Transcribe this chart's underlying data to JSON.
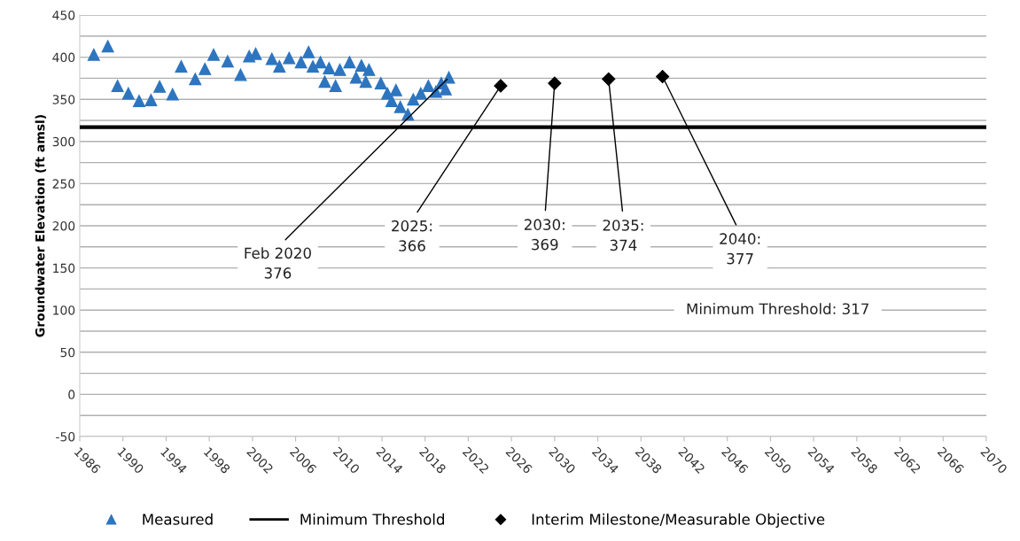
{
  "chart_data": {
    "type": "scatter",
    "ylabel": "Groundwater Elevation (ft amsl)",
    "xlim": [
      1986,
      2070
    ],
    "xticks": [
      1986,
      1990,
      1994,
      1998,
      2002,
      2006,
      2010,
      2014,
      2018,
      2022,
      2026,
      2030,
      2034,
      2038,
      2042,
      2046,
      2050,
      2054,
      2058,
      2062,
      2066,
      2070
    ],
    "ylim": [
      -50,
      450
    ],
    "yticks": [
      -50,
      {
        "value": -25,
        "label": null
      },
      0,
      {
        "value": 25,
        "label": null
      },
      50,
      {
        "value": 75,
        "label": null
      },
      100,
      {
        "value": 125,
        "label": null
      },
      150,
      {
        "value": 175,
        "label": null
      },
      200,
      {
        "value": 225,
        "label": null
      },
      250,
      {
        "value": 275,
        "label": null
      },
      300,
      {
        "value": 325,
        "label": null
      },
      350,
      {
        "value": 375,
        "label": null
      },
      400,
      {
        "value": 425,
        "label": null
      },
      450
    ],
    "grid": "y",
    "legend": "bottom",
    "series": [
      {
        "name": "Measured",
        "marker": "triangle",
        "color": "#2e75c0",
        "x": [
          1987.3,
          1988.6,
          1989.5,
          1990.5,
          1991.5,
          1992.6,
          1993.4,
          1994.6,
          1995.4,
          1996.7,
          1997.6,
          1998.4,
          1999.7,
          2000.9,
          2001.7,
          2002.3,
          2003.8,
          2004.5,
          2005.4,
          2006.5,
          2007.2,
          2007.6,
          2008.3,
          2008.7,
          2009.1,
          2009.7,
          2010.1,
          2011.0,
          2011.6,
          2012.1,
          2012.5,
          2012.8,
          2013.9,
          2014.5,
          2014.9,
          2015.3,
          2015.7,
          2016.4,
          2016.9,
          2017.6,
          2018.3,
          2019.0,
          2019.5,
          2019.9,
          2020.2
        ],
        "values": [
          403,
          413,
          366,
          357,
          348,
          349,
          365,
          356,
          389,
          374,
          386,
          403,
          395,
          379,
          401,
          404,
          398,
          389,
          399,
          394,
          406,
          389,
          394,
          371,
          387,
          366,
          385,
          394,
          376,
          390,
          371,
          385,
          369,
          357,
          348,
          361,
          341,
          332,
          350,
          357,
          366,
          359,
          369,
          362,
          376
        ]
      },
      {
        "name": "Minimum Threshold",
        "type": "line",
        "line_style": "solid",
        "color": "#000000",
        "x": [
          1986,
          2070
        ],
        "values": [
          317,
          317
        ]
      },
      {
        "name": "Interim Milestone/Measurable Objective",
        "marker": "diamond",
        "color": "#000000",
        "x": [
          2025,
          2030,
          2035,
          2040
        ],
        "values": [
          366,
          369,
          374,
          377
        ]
      }
    ],
    "annotations": [
      {
        "text": "Feb 2020\n376",
        "x": 2020.2,
        "y": 376
      },
      {
        "text": "2025:\n366",
        "x": 2025,
        "y": 366
      },
      {
        "text": "2030:\n369",
        "x": 2030,
        "y": 369
      },
      {
        "text": "2035:\n374",
        "x": 2035,
        "y": 374
      },
      {
        "text": "2040:\n377",
        "x": 2040,
        "y": 377
      },
      "Minimum Threshold: 317"
    ]
  }
}
